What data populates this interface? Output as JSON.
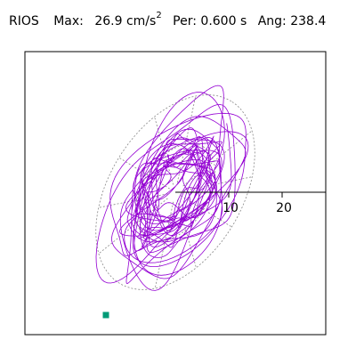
{
  "header": {
    "station": "RIOS",
    "max_label": "Max:",
    "max_value": "26.9",
    "max_unit": "cm/s",
    "max_unit_exp": "2",
    "per_label": "Per:",
    "per_value": "0.600",
    "per_unit": "s",
    "ang_label": "Ang:",
    "ang_value": "238.4"
  },
  "chart_data": {
    "type": "scatter",
    "title": "",
    "xlabel": "",
    "ylabel": "",
    "radial_ticks": [
      10,
      20
    ],
    "radial_tick_labels": [
      "10",
      "20"
    ],
    "radial_rings": [
      10,
      20
    ],
    "angular_spokes_deg": [
      30,
      60,
      90,
      120,
      150,
      210,
      240,
      270,
      300,
      330
    ],
    "ellipse_axis_angle_deg": 238.4,
    "max_amplitude": 26.9,
    "start_marker": {
      "x": -13.0,
      "y": -23.0
    },
    "colors": {
      "trace": "#9400d3",
      "marker": "#009b77",
      "grid": "#888888",
      "frame": "#000000"
    }
  }
}
